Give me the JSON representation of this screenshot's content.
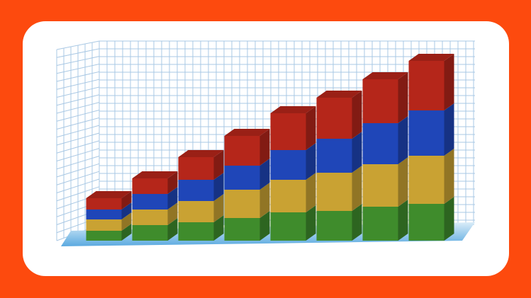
{
  "chart_data": {
    "type": "bar",
    "stacked": true,
    "three_d": true,
    "categories": [
      null,
      null,
      null,
      null,
      null,
      null,
      null,
      null
    ],
    "ylim": [
      0,
      260
    ],
    "grid": true,
    "series": [
      {
        "color": "#3f8c2c",
        "values": [
          14,
          22,
          26,
          32,
          40,
          42,
          48,
          52
        ]
      },
      {
        "color": "#c9a233",
        "values": [
          16,
          22,
          30,
          40,
          46,
          54,
          60,
          68
        ]
      },
      {
        "color": "#1f46b8",
        "values": [
          14,
          22,
          30,
          34,
          42,
          48,
          58,
          64
        ]
      },
      {
        "color": "#b5261a",
        "values": [
          16,
          22,
          32,
          42,
          52,
          58,
          62,
          70
        ]
      }
    ]
  }
}
